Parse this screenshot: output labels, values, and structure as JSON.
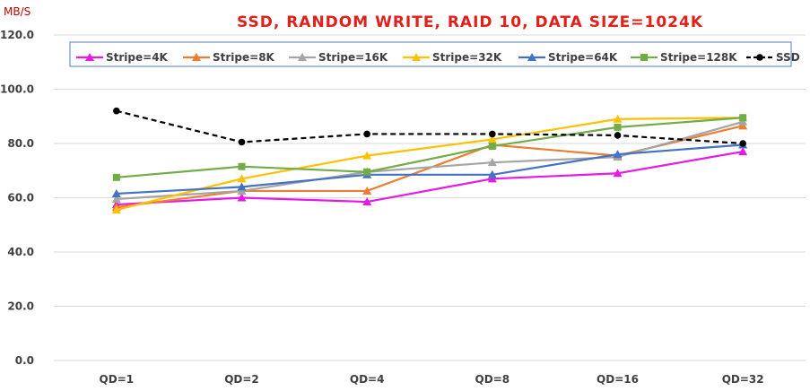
{
  "chart_data": {
    "type": "line",
    "title": "SSD, RANDOM WRITE, RAID 10, DATA SIZE=1024K",
    "ylabel": "MB/S",
    "xlabel": "",
    "categories": [
      "QD=1",
      "QD=2",
      "QD=4",
      "QD=8",
      "QD=16",
      "QD=32"
    ],
    "ylim": [
      0,
      120
    ],
    "yticks": [
      "0.0",
      "20.0",
      "40.0",
      "60.0",
      "80.0",
      "100.0",
      "120.0"
    ],
    "grid": "horizontal",
    "legend_position": "top",
    "series": [
      {
        "name": "Stripe=4K",
        "color": "#e619e6",
        "marker": "triangle",
        "dash": false,
        "values": [
          57.5,
          60.0,
          58.5,
          67.0,
          69.0,
          77.0
        ]
      },
      {
        "name": "Stripe=8K",
        "color": "#ed7d31",
        "marker": "triangle",
        "dash": false,
        "values": [
          56.5,
          62.5,
          62.5,
          79.5,
          75.5,
          86.5
        ]
      },
      {
        "name": "Stripe=16K",
        "color": "#a5a5a5",
        "marker": "triangle",
        "dash": false,
        "values": [
          59.5,
          62.5,
          69.5,
          73.0,
          75.0,
          88.0
        ]
      },
      {
        "name": "Stripe=32K",
        "color": "#ffc000",
        "marker": "triangle",
        "dash": false,
        "values": [
          55.5,
          67.0,
          75.5,
          81.5,
          89.0,
          89.5
        ]
      },
      {
        "name": "Stripe=64K",
        "color": "#4472c4",
        "marker": "triangle",
        "dash": false,
        "values": [
          61.5,
          64.0,
          68.5,
          68.5,
          76.0,
          79.5
        ]
      },
      {
        "name": "Stripe=128K",
        "color": "#70ad47",
        "marker": "square",
        "dash": false,
        "values": [
          67.5,
          71.5,
          69.5,
          79.0,
          86.0,
          89.5
        ]
      },
      {
        "name": "SSD",
        "color": "#000000",
        "marker": "circle",
        "dash": true,
        "values": [
          92.0,
          80.5,
          83.5,
          83.5,
          83.0,
          80.0
        ]
      }
    ]
  }
}
